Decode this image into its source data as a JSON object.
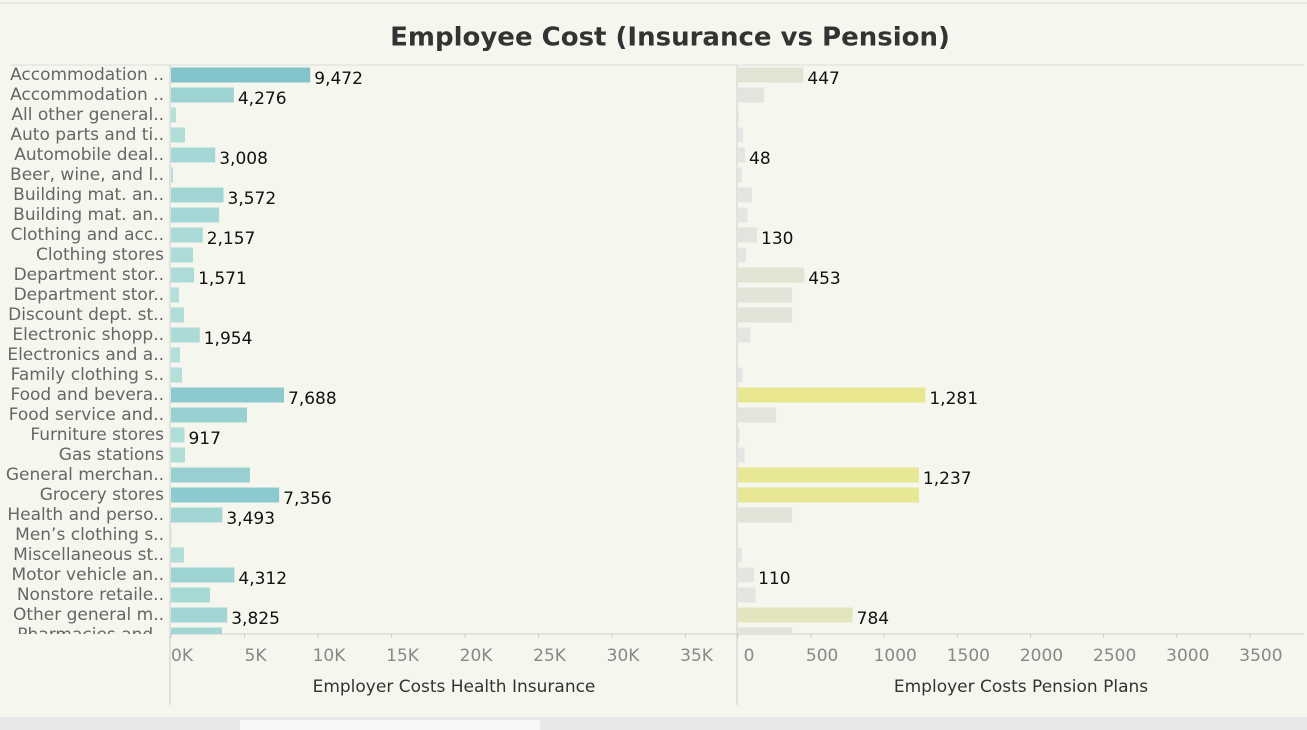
{
  "chart_data": [
    {
      "type": "bar",
      "orientation": "horizontal",
      "title": "Employee Cost (Insurance vs Pension)",
      "x_label": "Employer Costs Health Insurance",
      "categories": [
        "Accommodation ..",
        "Accommodation ..",
        "All other general..",
        "Auto parts and ti..",
        "Automobile deal..",
        "Beer, wine, and l..",
        "Building mat. an..",
        "Building mat. an..",
        "Clothing and acc..",
        "Clothing stores",
        "Department stor..",
        "Department stor..",
        "Discount dept. st..",
        "Electronic shopp..",
        "Electronics and a..",
        "Family clothing s..",
        "Food and bevera..",
        "Food service and..",
        "Furniture stores",
        "Gas stations",
        "General merchan..",
        "Grocery stores",
        "Health and perso..",
        "Men’s clothing s..",
        "Miscellaneous st..",
        "Motor vehicle an..",
        "Nonstore retaile..",
        "Other general m..",
        "Pharmacies and.."
      ],
      "values": [
        9472,
        4276,
        340,
        950,
        3008,
        140,
        3572,
        3270,
        2157,
        1500,
        1571,
        540,
        880,
        1954,
        610,
        750,
        7688,
        5170,
        917,
        950,
        5370,
        7356,
        3493,
        30,
        880,
        4312,
        2650,
        3825,
        3470
      ],
      "value_labels": [
        "9,472",
        "4,276",
        null,
        null,
        "3,008",
        null,
        "3,572",
        null,
        "2,157",
        null,
        "1,571",
        null,
        null,
        "1,954",
        null,
        null,
        "7,688",
        null,
        "917",
        null,
        null,
        "7,356",
        "3,493",
        null,
        null,
        "4,312",
        null,
        "3,825",
        null
      ],
      "color_range": [
        "#b5e1da",
        "#82c3cc"
      ],
      "xlim": [
        0,
        38500
      ],
      "xticks": [
        {
          "value": 0,
          "label": "0K"
        },
        {
          "value": 5000,
          "label": "5K"
        },
        {
          "value": 10000,
          "label": "10K"
        },
        {
          "value": 15000,
          "label": "15K"
        },
        {
          "value": 20000,
          "label": "20K"
        },
        {
          "value": 25000,
          "label": "25K"
        },
        {
          "value": 30000,
          "label": "30K"
        },
        {
          "value": 35000,
          "label": "35K"
        }
      ]
    },
    {
      "type": "bar",
      "orientation": "horizontal",
      "x_label": "Employer Costs Pension Plans",
      "values": [
        447,
        178,
        5,
        35,
        48,
        25,
        95,
        65,
        130,
        55,
        453,
        370,
        370,
        85,
        0,
        30,
        1281,
        260,
        10,
        45,
        1237,
        1237,
        370,
        0,
        25,
        110,
        120,
        784,
        370
      ],
      "value_labels": [
        "447",
        null,
        null,
        null,
        "48",
        null,
        null,
        null,
        "130",
        null,
        "453",
        null,
        null,
        null,
        null,
        null,
        "1,281",
        null,
        null,
        null,
        "1,237",
        null,
        null,
        null,
        null,
        "110",
        null,
        "784",
        null
      ],
      "color_range": [
        "#e4e4e4",
        "#e3e3cd",
        "#e8e78f"
      ],
      "xlim": [
        0,
        3870
      ],
      "xticks": [
        0,
        500,
        1000,
        1500,
        2000,
        2500,
        3000,
        3500
      ]
    }
  ]
}
